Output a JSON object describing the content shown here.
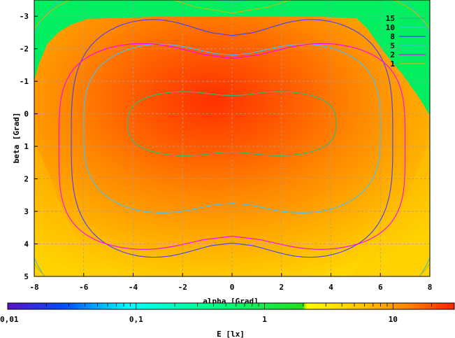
{
  "chart_data": {
    "type": "heatmap",
    "title": "",
    "xlabel": "alpha [Grad]",
    "ylabel": "beta [Grad]",
    "colorbar_label": "E [lx]",
    "xlim": [
      -8,
      8
    ],
    "ylim": [
      -3.5,
      5
    ],
    "x_ticks": [
      -8,
      -6,
      -4,
      -2,
      0,
      2,
      4,
      6,
      8
    ],
    "x_tick_labels": [
      "-8",
      "-6",
      "-4",
      "-2",
      "0",
      "2",
      "4",
      "6",
      "8"
    ],
    "y_ticks": [
      -3,
      -2,
      -1,
      0,
      1,
      2,
      3,
      4,
      5
    ],
    "y_tick_labels": [
      "-3",
      "-2",
      "-1",
      "0",
      "1",
      "2",
      "3",
      "4",
      "5"
    ],
    "y_inverted": true,
    "grid": true,
    "colorbar": {
      "scale": "log",
      "range": [
        0.01,
        30
      ],
      "tick_values": [
        0.01,
        0.1,
        1,
        10
      ],
      "tick_labels": [
        "0,01",
        "0,1",
        "1",
        "10"
      ],
      "colors": [
        "#5a10c8",
        "#0050ff",
        "#00ffff",
        "#00ff90",
        "#20e020",
        "#ffff00",
        "#ffc000",
        "#ff8000",
        "#ff2000"
      ]
    },
    "legend_position": "top-right",
    "contour_levels": [
      {
        "label": "15",
        "value": 15,
        "color": "#20c080",
        "shape": {
          "cx": 0,
          "cy": 0.3,
          "rx": 4.2,
          "ry": 1.05,
          "p": 3
        }
      },
      {
        "label": "10",
        "value": 10,
        "color": "#40c0ff",
        "shape": {
          "cx": 0,
          "cy": 0.45,
          "rx": 6.0,
          "ry": 2.75,
          "p": 3.2
        }
      },
      {
        "label": "8",
        "value": 8,
        "color": "#4040ff",
        "shape": {
          "cx": 0,
          "cy": 0.75,
          "rx": 6.5,
          "ry": 3.85,
          "p": 3.4
        }
      },
      {
        "label": "5",
        "value": 5,
        "color": "#40c0c0",
        "shape": {
          "cx": 0,
          "cy": 1.0,
          "rx": 8.5,
          "ry": 5.4,
          "p": 3.6
        }
      },
      {
        "label": "2",
        "value": 2,
        "color": "#ff00ff",
        "shape": {
          "cx": 0,
          "cy": 1.0,
          "rx": 7.0,
          "ry": 3.3,
          "p": 3.8
        }
      },
      {
        "label": "1",
        "value": 1,
        "color": "#c0c000",
        "shape": {
          "cx": 0,
          "cy": 1.0,
          "rx": 8.7,
          "ry": 5.0,
          "p": 3.9
        }
      }
    ]
  }
}
